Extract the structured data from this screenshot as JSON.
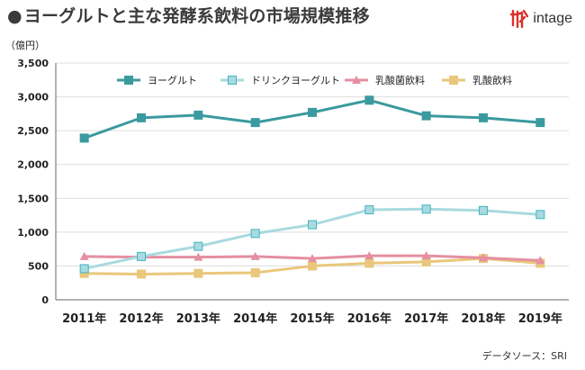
{
  "title": "ヨーグルトと主な発酵系飲料の市場規模推移",
  "title_bullet": "●",
  "logo_text": "intage",
  "source": "データソース：SRI",
  "chart_data": {
    "type": "line",
    "title": "ヨーグルトと主な発酵系飲料の市場規模推移",
    "ylabel": "（億円）",
    "xlabel": "",
    "ylim": [
      0,
      3500
    ],
    "yticks": [
      0,
      500,
      1000,
      1500,
      2000,
      2500,
      3000,
      3500
    ],
    "ytick_labels": [
      "0",
      "500",
      "1,000",
      "1,500",
      "2,000",
      "2,500",
      "3,000",
      "3,500"
    ],
    "categories": [
      "2011年",
      "2012年",
      "2013年",
      "2014年",
      "2015年",
      "2016年",
      "2017年",
      "2018年",
      "2019年"
    ],
    "grid": true,
    "legend_position": "top",
    "series": [
      {
        "name": "ヨーグルト",
        "values": [
          2390,
          2690,
          2730,
          2620,
          2770,
          2950,
          2720,
          2690,
          2620
        ],
        "color": "#3a9a9f",
        "marker": "square"
      },
      {
        "name": "ドリンクヨーグルト",
        "values": [
          460,
          640,
          790,
          980,
          1110,
          1330,
          1340,
          1320,
          1260
        ],
        "color": "#a9dadf",
        "marker": "square"
      },
      {
        "name": "乳酸菌飲料",
        "values": [
          640,
          630,
          630,
          640,
          610,
          650,
          650,
          620,
          580
        ],
        "color": "#e58fa1",
        "marker": "triangle"
      },
      {
        "name": "乳酸飲料",
        "values": [
          390,
          380,
          390,
          400,
          500,
          540,
          560,
          610,
          540
        ],
        "color": "#e9c77b",
        "marker": "square"
      }
    ]
  },
  "colors": {
    "grid": "#dddddd",
    "axis": "#666666",
    "text": "#222222"
  }
}
